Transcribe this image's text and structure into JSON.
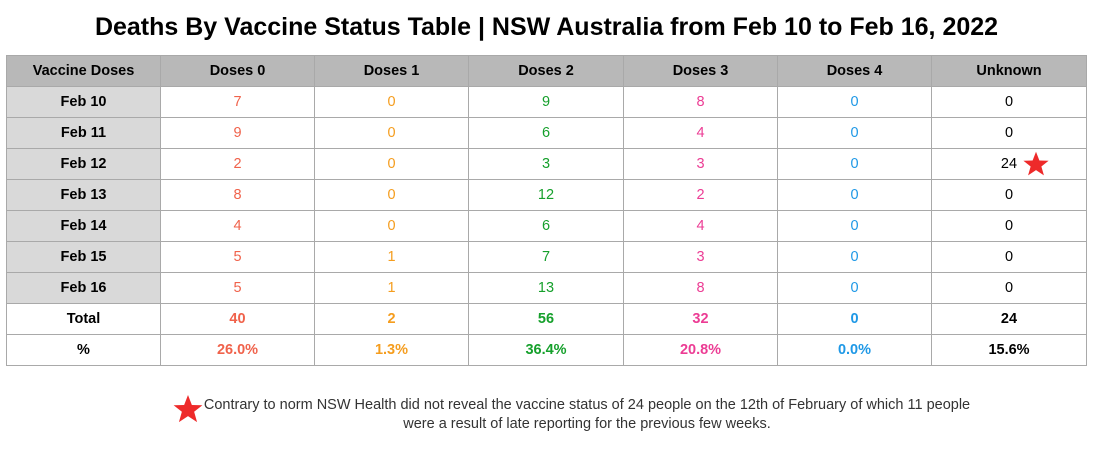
{
  "title": "Deaths By Vaccine Status Table | NSW Australia from Feb 10 to Feb 16, 2022",
  "colors": {
    "doses0": "#f0624b",
    "doses1": "#f59d1e",
    "doses2": "#16a02c",
    "doses3": "#ec3c94",
    "doses4": "#1e98e6",
    "unknown": "#000000",
    "star": "#ee2a2a"
  },
  "chart_data": {
    "type": "table",
    "title": "Deaths By Vaccine Status Table | NSW Australia from Feb 10 to Feb 16, 2022",
    "columns": [
      "Vaccine Doses",
      "Doses 0",
      "Doses 1",
      "Doses 2",
      "Doses 3",
      "Doses 4",
      "Unknown"
    ],
    "rows": [
      {
        "label": "Feb 10",
        "values": [
          "7",
          "0",
          "9",
          "8",
          "0",
          "0"
        ]
      },
      {
        "label": "Feb 11",
        "values": [
          "9",
          "0",
          "6",
          "4",
          "0",
          "0"
        ]
      },
      {
        "label": "Feb 12",
        "values": [
          "2",
          "0",
          "3",
          "3",
          "0",
          "24"
        ],
        "star_col": 5
      },
      {
        "label": "Feb 13",
        "values": [
          "8",
          "0",
          "12",
          "2",
          "0",
          "0"
        ]
      },
      {
        "label": "Feb 14",
        "values": [
          "4",
          "0",
          "6",
          "4",
          "0",
          "0"
        ]
      },
      {
        "label": "Feb 15",
        "values": [
          "5",
          "1",
          "7",
          "3",
          "0",
          "0"
        ]
      },
      {
        "label": "Feb 16",
        "values": [
          "5",
          "1",
          "13",
          "8",
          "0",
          "0"
        ]
      }
    ],
    "total": {
      "label": "Total",
      "values": [
        "40",
        "2",
        "56",
        "32",
        "0",
        "24"
      ]
    },
    "percent": {
      "label": "%",
      "values": [
        "26.0%",
        "1.3%",
        "36.4%",
        "20.8%",
        "0.0%",
        "15.6%"
      ]
    }
  },
  "footnote": {
    "icon": "star-icon",
    "text": "Contrary to norm NSW Health did not reveal the vaccine status of 24 people on the 12th of February of which 11 people were a result of late reporting for the previous few weeks."
  }
}
